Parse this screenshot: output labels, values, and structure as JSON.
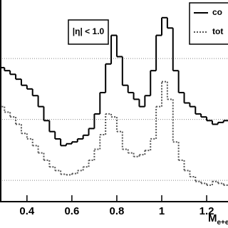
{
  "chart_data": {
    "type": "histogram",
    "annotation": "|η| < 1.0",
    "x_label": "M",
    "x_label_sub": "e+e",
    "bins": [
      0.275,
      0.3,
      0.325,
      0.35,
      0.375,
      0.4,
      0.425,
      0.45,
      0.475,
      0.5,
      0.525,
      0.55,
      0.575,
      0.6,
      0.625,
      0.65,
      0.675,
      0.7,
      0.725,
      0.75,
      0.775,
      0.8,
      0.825,
      0.85,
      0.875,
      0.9,
      0.925,
      0.95,
      0.975,
      1,
      1.025,
      1.05,
      1.075,
      1.1,
      1.125,
      1.15,
      1.175,
      1.2,
      1.225,
      1.25,
      1.275,
      1.3
    ],
    "series": [
      {
        "name": "co",
        "color": "#000000",
        "dash": "solid",
        "values": [
          2.85,
          2.8,
          2.74,
          2.66,
          2.56,
          2.5,
          2.39,
          2.21,
          1.98,
          1.8,
          1.68,
          1.57,
          1.6,
          1.63,
          1.68,
          1.74,
          1.85,
          2.09,
          2.44,
          2.91,
          3.38,
          3.03,
          2.56,
          2.44,
          2.33,
          2.21,
          2.39,
          2.8,
          3.38,
          3.67,
          3.5,
          2.8,
          2.44,
          2.27,
          2.21,
          2.09,
          2.04,
          1.98,
          1.92,
          1.95,
          1.98
        ]
      },
      {
        "name": "tot",
        "color": "#555555",
        "dash": "dotted",
        "values": [
          2.21,
          2.12,
          2.04,
          1.92,
          1.77,
          1.68,
          1.57,
          1.45,
          1.33,
          1.22,
          1.16,
          1.1,
          1.09,
          1.11,
          1.16,
          1.22,
          1.33,
          1.51,
          1.75,
          2.09,
          2.04,
          1.8,
          1.51,
          1.45,
          1.39,
          1.42,
          1.49,
          1.68,
          2.21,
          2.62,
          2.33,
          1.63,
          1.33,
          1.16,
          1.06,
          0.98,
          0.95,
          0.92,
          0.98,
          0.95,
          0.92
        ]
      }
    ],
    "xlim": [
      0.28,
      1.295
    ],
    "xticks": [
      0.4,
      0.6,
      0.8,
      1,
      1.2
    ],
    "ylim": [
      0.65,
      3.96
    ],
    "yticks": [
      1,
      2,
      3
    ],
    "grid": true,
    "legend": "top-right"
  }
}
